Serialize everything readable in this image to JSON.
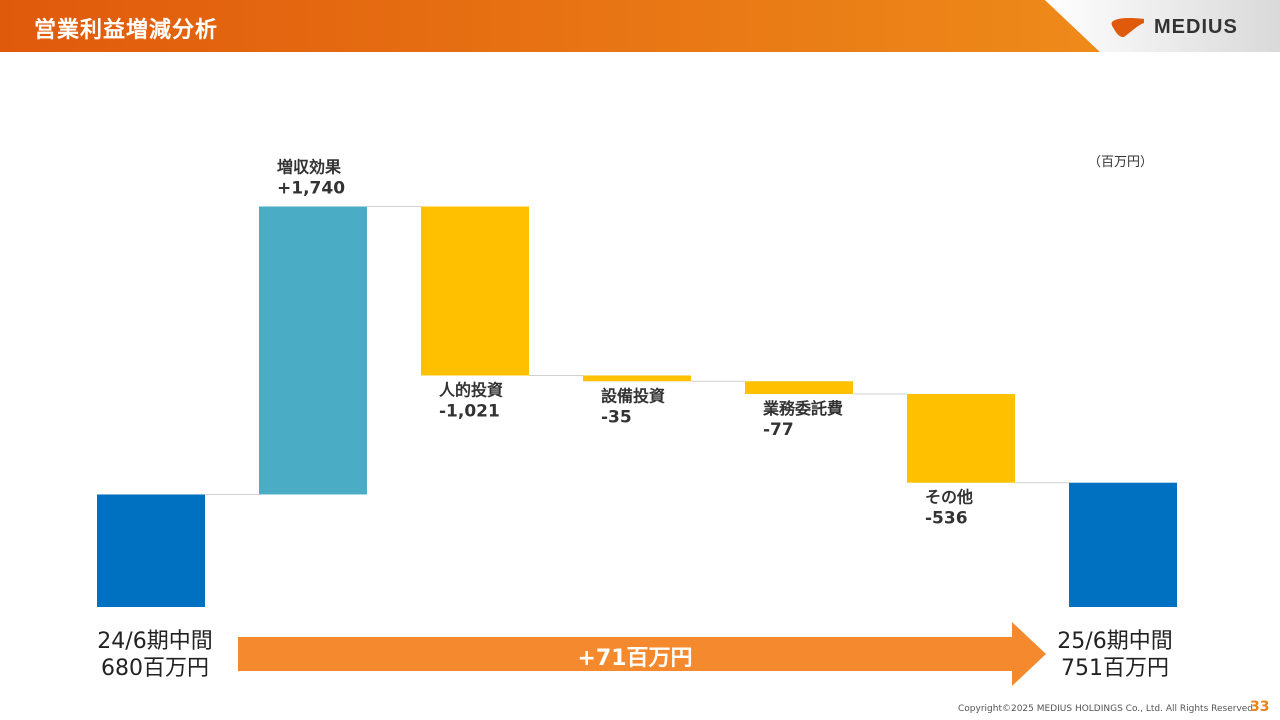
{
  "page": {
    "title": "営業利益増減分析",
    "logo_text": "MEDIUS",
    "unit": "（百万円）",
    "footer": "Copyright©2025 MEDIUS HOLDINGS Co., Ltd. All Rights Reserved",
    "page_number": "33"
  },
  "colors": {
    "header_start": "#e05a0c",
    "header_end": "#ee8a1a",
    "total_bar": "#0070c0",
    "increase_bar": "#4bacc6",
    "decrease_bar": "#ffc000",
    "arrow": "#f5892e"
  },
  "summary": {
    "start_label_line1": "24/6期中間",
    "start_label_line2": "680百万円",
    "end_label_line1": "25/6期中間",
    "end_label_line2": "751百万円",
    "change_label": "+71百万円"
  },
  "chart_data": {
    "type": "bar",
    "subtype": "waterfall",
    "categories": [
      "24/6期中間",
      "増収効果",
      "人的投資",
      "設備投資",
      "業務委託費",
      "その他",
      "25/6期中間"
    ],
    "values": [
      680,
      1740,
      -1021,
      -35,
      -77,
      -536,
      751
    ],
    "kinds": [
      "total",
      "increase",
      "decrease",
      "decrease",
      "decrease",
      "decrease",
      "total"
    ],
    "labels": [
      {
        "name": "",
        "value": ""
      },
      {
        "name": "増収効果",
        "value": "+1,740"
      },
      {
        "name": "人的投資",
        "value": "-1,021"
      },
      {
        "name": "設備投資",
        "value": "-35"
      },
      {
        "name": "業務委託費",
        "value": "-77"
      },
      {
        "name": "その他",
        "value": "-536"
      },
      {
        "name": "",
        "value": ""
      }
    ],
    "ylabel": "百万円"
  }
}
